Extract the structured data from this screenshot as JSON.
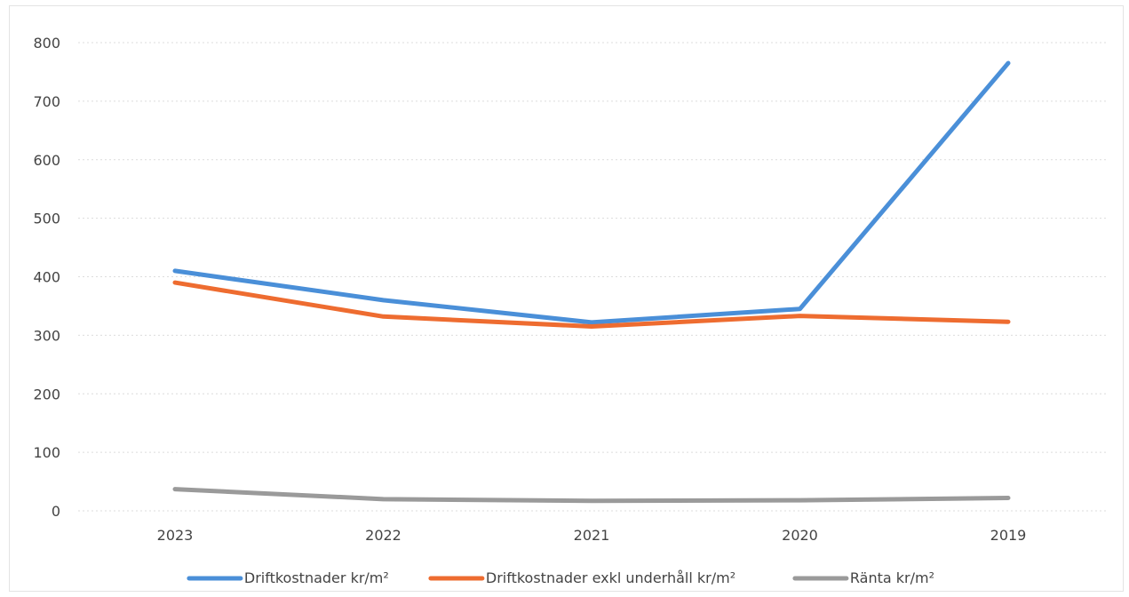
{
  "chart_data": {
    "type": "line",
    "title": "",
    "xlabel": "",
    "ylabel": "",
    "categories": [
      "2023",
      "2022",
      "2021",
      "2020",
      "2019"
    ],
    "ylim": [
      0,
      800
    ],
    "yticks": [
      0,
      100,
      200,
      300,
      400,
      500,
      600,
      700,
      800
    ],
    "grid": true,
    "legend_position": "bottom",
    "series": [
      {
        "name": "Driftkostnader kr/m²",
        "color": "#4a8fd8",
        "values": [
          410,
          360,
          322,
          345,
          765
        ]
      },
      {
        "name": "Driftkostnader exkl underhåll kr/m²",
        "color": "#ee6c30",
        "values": [
          390,
          332,
          315,
          333,
          323
        ]
      },
      {
        "name": "Ränta kr/m²",
        "color": "#9a9a9a",
        "values": [
          37,
          20,
          17,
          18,
          22
        ]
      }
    ]
  }
}
